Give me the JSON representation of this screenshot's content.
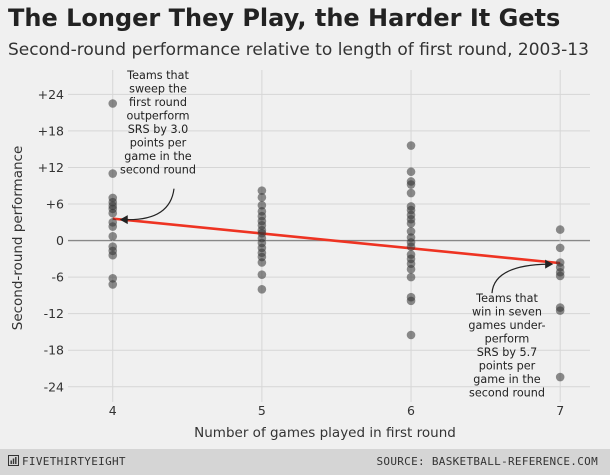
{
  "header": {
    "title": "The Longer They Play, the Harder It Gets",
    "subtitle": "Second-round performance relative to length of first round, 2003-13"
  },
  "footer": {
    "brand": "FIVETHIRTYEIGHT",
    "source": "SOURCE: BASKETBALL-REFERENCE.COM"
  },
  "colors": {
    "trend": "#ee3322",
    "points": "#333333",
    "background": "#f0f0f0",
    "grid": "#d6d6d6"
  },
  "chart_data": {
    "type": "scatter",
    "title": "The Longer They Play, the Harder It Gets",
    "subtitle": "Second-round performance relative to length of first round, 2003-13",
    "xlabel": "Number of games played in first round",
    "ylabel": "Second-round performance",
    "xlim": [
      3.7,
      7.2
    ],
    "ylim": [
      -26.5,
      28
    ],
    "x_ticks": [
      4,
      5,
      6,
      7
    ],
    "y_ticks": [
      24,
      18,
      12,
      6,
      0,
      -6,
      -12,
      -18,
      -24
    ],
    "y_tick_labels": [
      "+24",
      "+18",
      "+12",
      "+6",
      "0",
      "-6",
      "-12",
      "-18",
      "-24"
    ],
    "grid": true,
    "points": {
      "4": [
        22.5,
        11.0,
        7.0,
        6.3,
        5.7,
        5.2,
        4.5,
        3.0,
        2.3,
        0.7,
        -1.0,
        -1.7,
        -2.4,
        -6.2,
        -7.2
      ],
      "5": [
        8.2,
        7.1,
        5.8,
        4.8,
        4.0,
        3.2,
        2.5,
        1.7,
        1.2,
        0.4,
        -0.4,
        -1.2,
        -2.0,
        -2.7,
        -3.6,
        -5.6,
        -8.0
      ],
      "6": [
        15.6,
        11.3,
        9.7,
        9.2,
        7.8,
        5.6,
        5.0,
        4.2,
        3.5,
        2.8,
        1.5,
        0.5,
        -0.3,
        -1.0,
        -2.3,
        -3.0,
        -3.8,
        -4.7,
        -6.0,
        -9.3,
        -9.9,
        -15.5
      ],
      "7": [
        1.8,
        -1.2,
        -3.6,
        -4.4,
        -5.2,
        -5.8,
        -11.0,
        -11.5,
        -22.4
      ]
    },
    "trend_line": {
      "x": [
        4,
        7
      ],
      "y": [
        3.6,
        -3.7
      ]
    },
    "annotations": [
      {
        "lines": [
          "Teams that",
          "sweep the",
          "first round",
          "outperform",
          "SRS by 3.0",
          "points per",
          "game in the",
          "second round"
        ]
      },
      {
        "lines": [
          "Teams that",
          "win in seven",
          "games under-",
          "perform",
          "SRS by 5.7",
          "points per",
          "game in the",
          "second round"
        ]
      }
    ]
  }
}
